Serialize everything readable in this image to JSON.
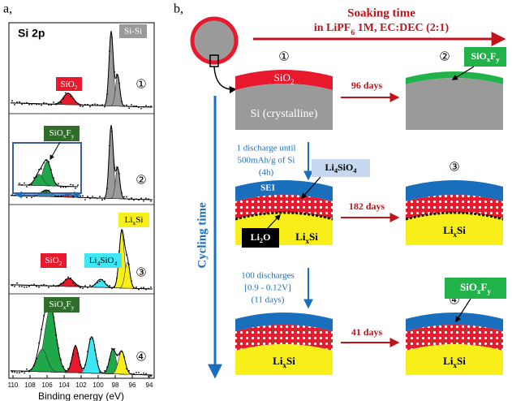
{
  "panel_a": {
    "label": "a,",
    "title": "Si 2p",
    "peaks": {
      "si_si": "Si-Si",
      "sio2_1": [
        "SiO",
        "2"
      ],
      "sioxfy_2": [
        "SiO",
        "x",
        "F",
        "y"
      ],
      "lixsi_3": [
        "Li",
        "x",
        "Si"
      ],
      "sio2_3": [
        "SiO",
        "2"
      ],
      "li4sio4_3": [
        "Li",
        "4",
        "SiO",
        "4"
      ],
      "sioxfy_4": [
        "SiO",
        "x",
        "F",
        "y"
      ]
    },
    "spectra": [
      "①",
      "②",
      "③",
      "④"
    ],
    "xticks": [
      110,
      108,
      106,
      104,
      102,
      100,
      98,
      96,
      94
    ],
    "xlabel": "Binding energy (eV)"
  },
  "panel_b": {
    "label": "b,",
    "soaking_title": "Soaking time",
    "soaking_medium": [
      "in LiPF",
      "6",
      " 1M, EC:DEC (2:1)"
    ],
    "steps": [
      "①",
      "②",
      "③",
      "④"
    ],
    "sio2": [
      "SiO",
      "2"
    ],
    "si_crystalline": "Si (crystalline)",
    "soak_1": "96 days",
    "sioxfy_2": [
      "SiO",
      "x",
      "F",
      "y"
    ],
    "discharge_1": [
      "1 discharge until",
      "500mAh/g of Si",
      "(4h)"
    ],
    "li4sio4": [
      "Li",
      "4",
      "SiO",
      "4"
    ],
    "sei": "SEI",
    "li2o": [
      "Li",
      "2",
      "O"
    ],
    "lixsi_3a": [
      "Li",
      "x",
      "Si"
    ],
    "soak_2": "182 days",
    "lixsi_3b": [
      "Li",
      "x",
      "Si"
    ],
    "discharge_2": [
      "100 discharges",
      "[0.9 - 0.12V]",
      "(11 days)"
    ],
    "sioxfy_4": [
      "SiO",
      "x",
      "F",
      "y"
    ],
    "lixsi_4a": [
      "Li",
      "x",
      "Si"
    ],
    "soak_3": "41 days",
    "lixsi_4b": [
      "Li",
      "x",
      "Si"
    ],
    "cycling": "Cycling time"
  }
}
